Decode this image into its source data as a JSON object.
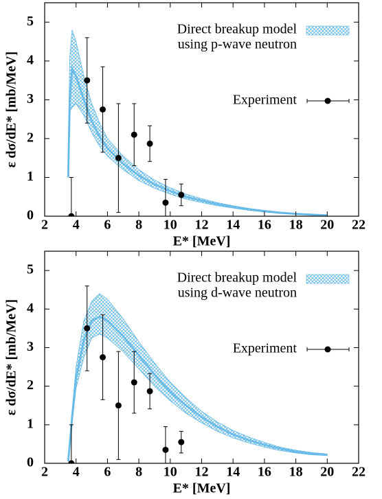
{
  "chart_data": [
    {
      "type": "line",
      "xlabel": "E* [MeV]",
      "ylabel": "ε dσ/dE* [mb/MeV]",
      "xlim": [
        2,
        22
      ],
      "xticks": [
        2,
        4,
        6,
        8,
        10,
        12,
        14,
        16,
        18,
        20,
        22
      ],
      "ylim": [
        0,
        5.5
      ],
      "yticks": [
        0,
        1,
        2,
        3,
        4,
        5
      ],
      "legend": "upper right",
      "series": [
        {
          "name": [
            "Direct breakup model",
            "using p-wave neutron"
          ],
          "color": "#5ab4e5",
          "x": [
            3.5,
            3.6,
            3.75,
            4,
            4.5,
            5,
            5.5,
            6,
            7,
            8,
            9,
            10,
            11,
            12,
            13,
            14,
            15,
            16,
            17,
            18,
            19,
            20
          ],
          "center": [
            1.0,
            3.0,
            3.8,
            3.6,
            3.0,
            2.45,
            2.05,
            1.75,
            1.35,
            1.05,
            0.82,
            0.65,
            0.5,
            0.4,
            0.31,
            0.24,
            0.18,
            0.13,
            0.09,
            0.06,
            0.04,
            0.02
          ],
          "lower": [
            1.0,
            2.7,
            2.8,
            2.9,
            2.6,
            2.15,
            1.8,
            1.55,
            1.2,
            0.92,
            0.72,
            0.57,
            0.44,
            0.35,
            0.27,
            0.21,
            0.15,
            0.11,
            0.07,
            0.05,
            0.03,
            0.01
          ],
          "upper": [
            1.6,
            4.1,
            4.8,
            4.5,
            3.6,
            2.9,
            2.4,
            2.0,
            1.55,
            1.2,
            0.93,
            0.73,
            0.57,
            0.45,
            0.35,
            0.27,
            0.2,
            0.15,
            0.1,
            0.07,
            0.05,
            0.03
          ]
        },
        {
          "name": "Experiment",
          "color": "#000000",
          "x": [
            3.7,
            4.7,
            5.7,
            6.7,
            7.7,
            8.7,
            9.7,
            10.7
          ],
          "values": [
            0,
            3.5,
            2.75,
            1.5,
            2.1,
            1.87,
            0.35,
            0.55
          ],
          "errors": [
            1.0,
            1.1,
            1.1,
            1.4,
            0.8,
            0.46,
            0.6,
            0.28
          ]
        }
      ]
    },
    {
      "type": "line",
      "xlabel": "E* [MeV]",
      "ylabel": "ε dσ/dE* [mb/MeV]",
      "xlim": [
        2,
        22
      ],
      "xticks": [
        2,
        4,
        6,
        8,
        10,
        12,
        14,
        16,
        18,
        20,
        22
      ],
      "ylim": [
        0,
        5.5
      ],
      "yticks": [
        0,
        1,
        2,
        3,
        4,
        5
      ],
      "legend": "upper right",
      "series": [
        {
          "name": [
            "Direct breakup model",
            "using d-wave neutron"
          ],
          "color": "#5ab4e5",
          "x": [
            3.5,
            3.6,
            3.75,
            4,
            4.5,
            5,
            5.5,
            6,
            7,
            8,
            9,
            10,
            11,
            12,
            13,
            14,
            15,
            16,
            17,
            18,
            19,
            20
          ],
          "center": [
            0.05,
            0.5,
            1.2,
            2.2,
            3.2,
            3.7,
            3.8,
            3.7,
            3.3,
            2.8,
            2.3,
            1.85,
            1.5,
            1.2,
            0.95,
            0.75,
            0.6,
            0.48,
            0.38,
            0.3,
            0.25,
            0.22
          ],
          "lower": [
            0.05,
            0.45,
            1.05,
            1.95,
            2.75,
            3.25,
            3.35,
            3.25,
            2.9,
            2.45,
            2.0,
            1.62,
            1.3,
            1.05,
            0.83,
            0.66,
            0.53,
            0.42,
            0.33,
            0.27,
            0.22,
            0.2
          ],
          "upper": [
            0.05,
            0.55,
            1.35,
            2.5,
            3.7,
            4.2,
            4.4,
            4.25,
            3.75,
            3.15,
            2.6,
            2.1,
            1.7,
            1.35,
            1.07,
            0.85,
            0.68,
            0.54,
            0.42,
            0.34,
            0.28,
            0.24
          ]
        },
        {
          "name": "Experiment",
          "color": "#000000",
          "x": [
            3.7,
            4.7,
            5.7,
            6.7,
            7.7,
            8.7,
            9.7,
            10.7
          ],
          "values": [
            0,
            3.5,
            2.75,
            1.5,
            2.1,
            1.87,
            0.35,
            0.55
          ],
          "errors": [
            1.0,
            1.1,
            1.1,
            1.4,
            0.8,
            0.46,
            0.6,
            0.28
          ]
        }
      ]
    }
  ]
}
